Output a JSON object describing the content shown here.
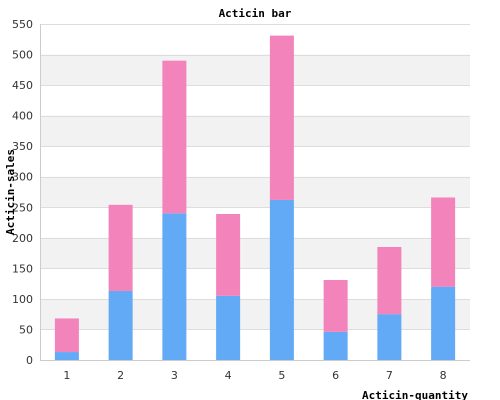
{
  "chart_data": {
    "type": "bar",
    "stacked": true,
    "title": "Acticin bar",
    "xlabel": "Acticin-quantity",
    "ylabel": "Acticin-sales",
    "categories": [
      "1",
      "2",
      "3",
      "4",
      "5",
      "6",
      "7",
      "8"
    ],
    "series": [
      {
        "color": "#62a9f6",
        "values": [
          13,
          113,
          240,
          105,
          262,
          46,
          75,
          120
        ]
      },
      {
        "color": "#f283bb",
        "values": [
          55,
          141,
          250,
          134,
          269,
          85,
          110,
          146
        ]
      }
    ],
    "ylim": [
      0,
      550
    ],
    "yticks": [
      0,
      50,
      100,
      150,
      200,
      250,
      300,
      350,
      400,
      450,
      500,
      550
    ],
    "grid": true,
    "grid_band_color": "#f2f2f2",
    "legend": "none"
  }
}
